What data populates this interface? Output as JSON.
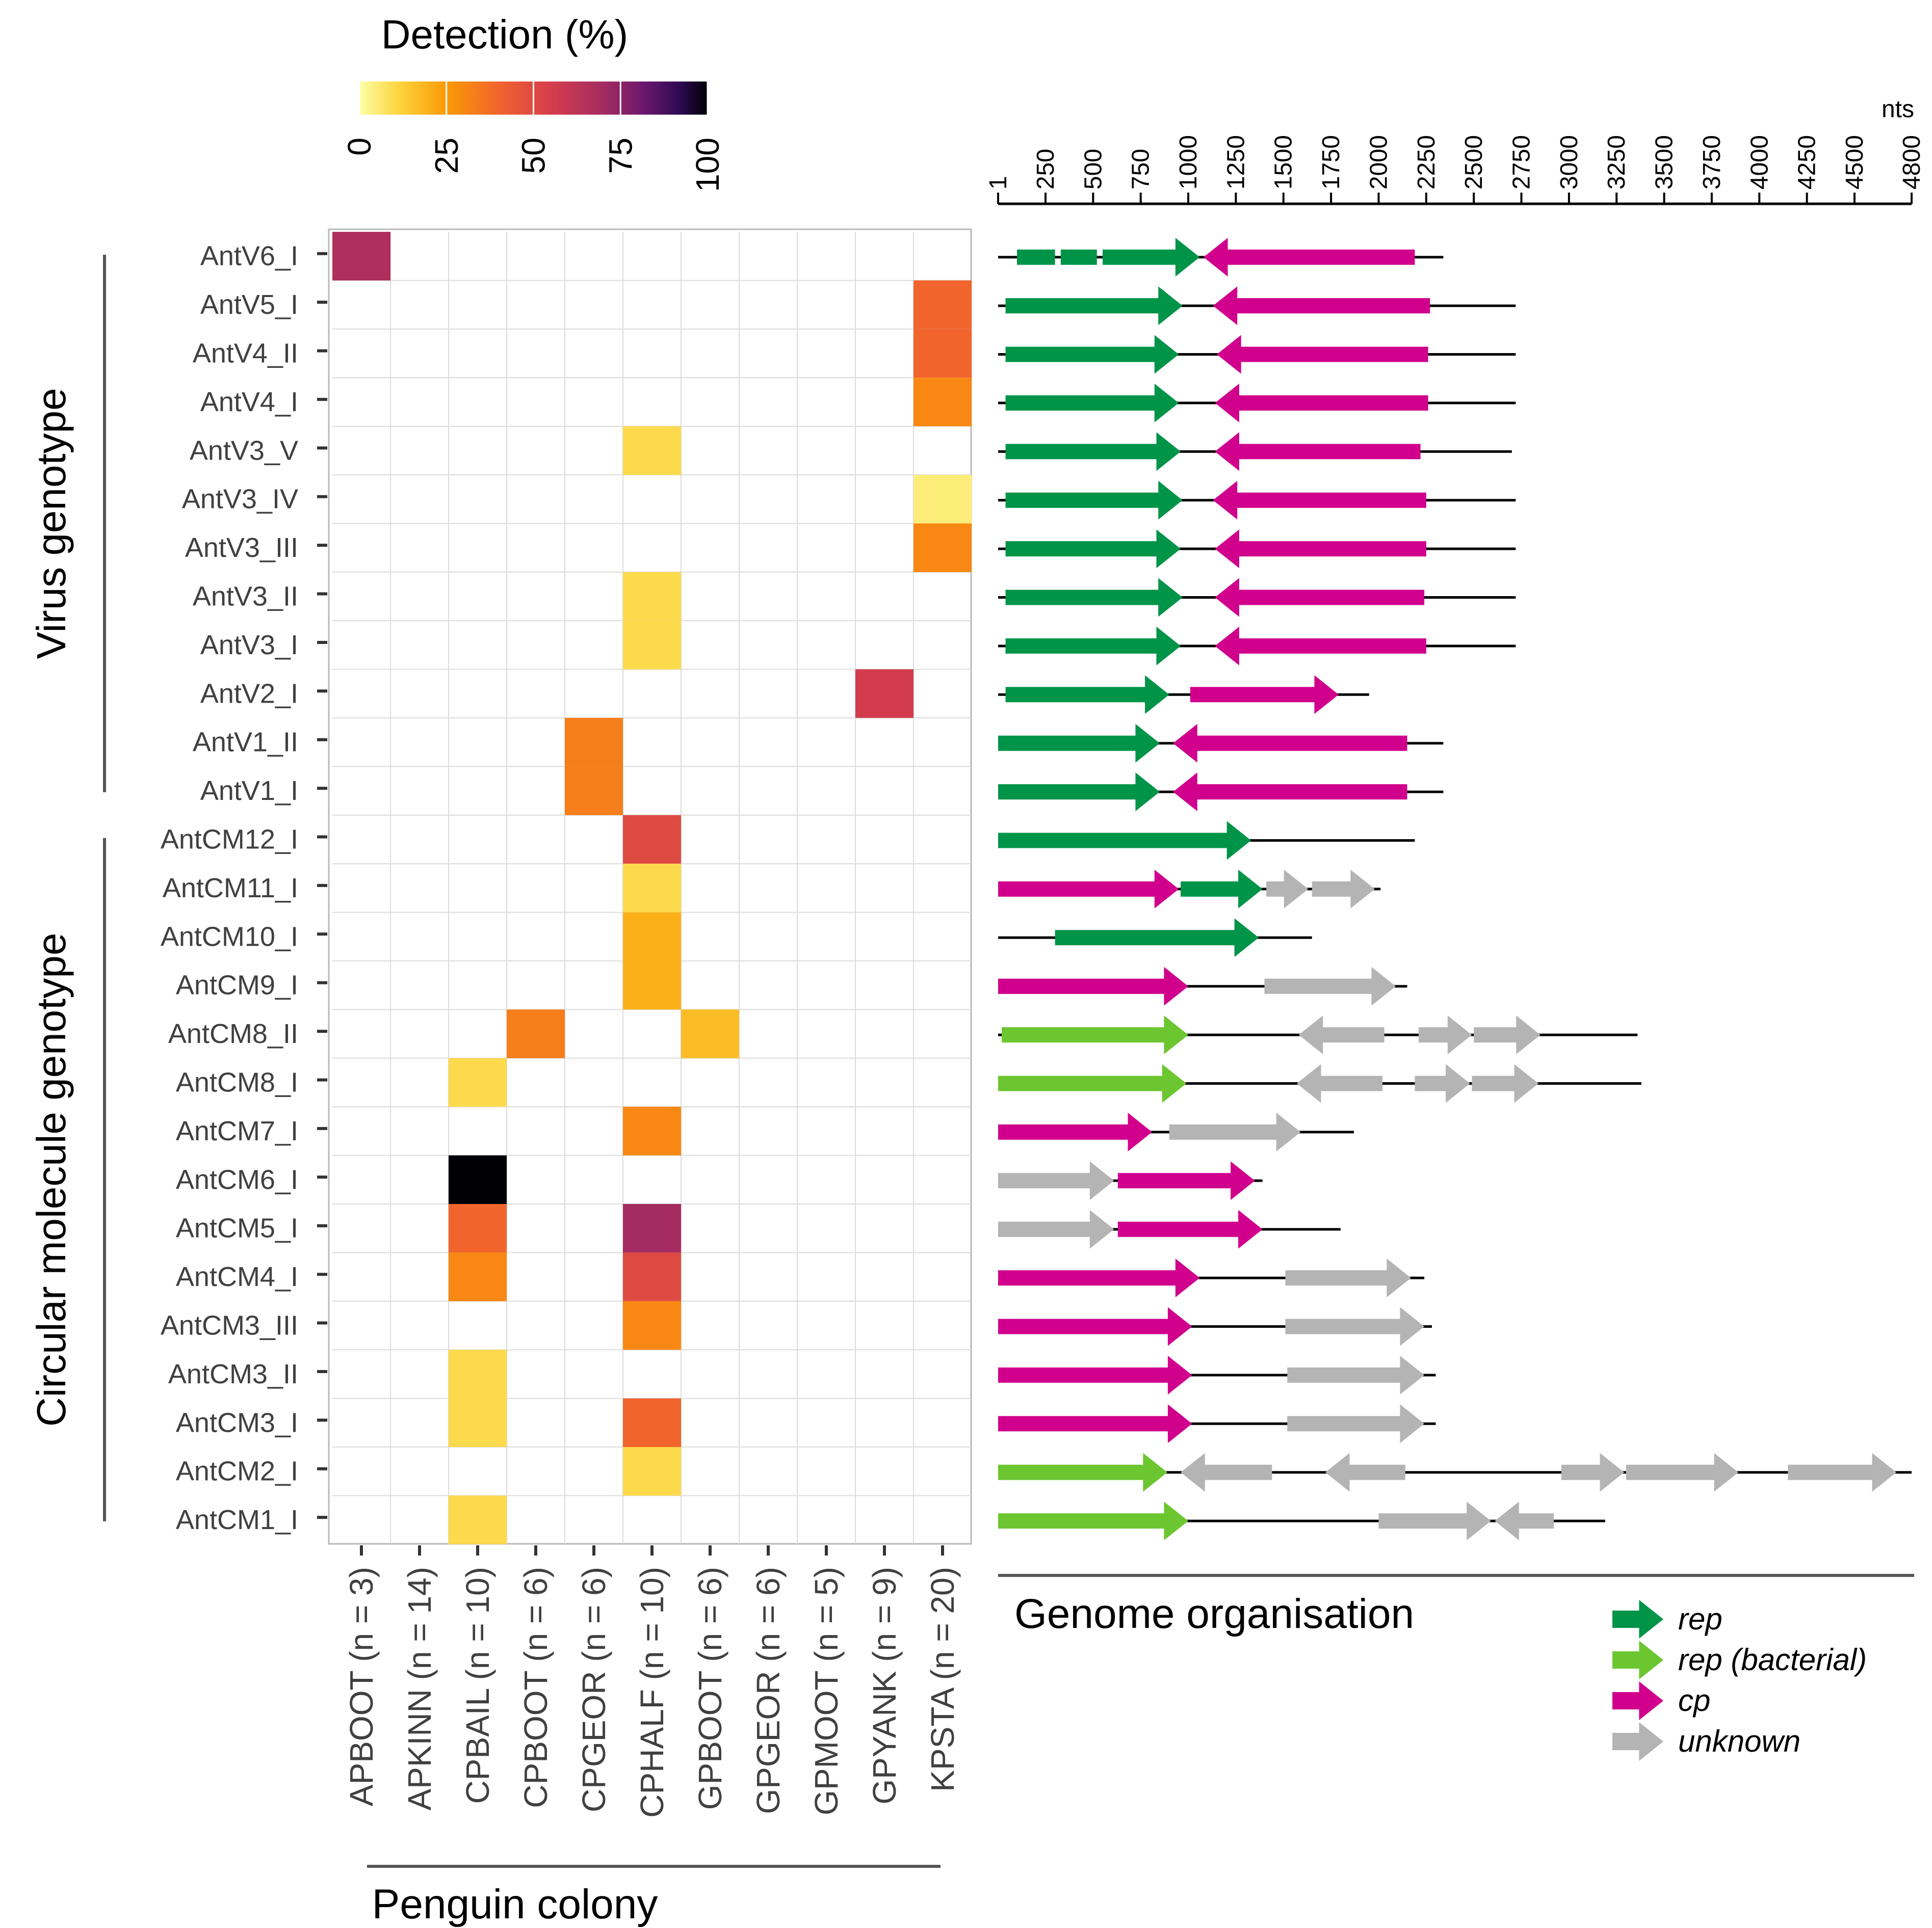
{
  "chart_data": [
    {
      "type": "heatmap",
      "title": "Detection (%)",
      "legend": {
        "title": "Detection (%)",
        "ticks": [
          "0",
          "25",
          "50",
          "75",
          "100"
        ],
        "range": [
          0,
          100
        ],
        "placement": "top-left"
      },
      "xlabel": "Penguin colony",
      "ylabel": "",
      "columns": [
        "APBOOT (n = 3)",
        "APKINN (n = 14)",
        "CPBAIL (n = 10)",
        "CPBOOT (n = 6)",
        "CPGEOR (n = 6)",
        "CPHALF (n = 10)",
        "GPBOOT (n = 6)",
        "GPGEOR (n = 6)",
        "GPMOOT (n = 5)",
        "GPYANK (n = 9)",
        "KPSTA (n = 20)"
      ],
      "rows": [
        "AntV6_I",
        "AntV5_I",
        "AntV4_II",
        "AntV4_I",
        "AntV3_V",
        "AntV3_IV",
        "AntV3_III",
        "AntV3_II",
        "AntV3_I",
        "AntV2_I",
        "AntV1_II",
        "AntV1_I",
        "AntCM12_I",
        "AntCM11_I",
        "AntCM10_I",
        "AntCM9_I",
        "AntCM8_II",
        "AntCM8_I",
        "AntCM7_I",
        "AntCM6_I",
        "AntCM5_I",
        "AntCM4_I",
        "AntCM3_III",
        "AntCM3_II",
        "AntCM3_I",
        "AntCM2_I",
        "AntCM1_I"
      ],
      "groups": [
        {
          "label": "Virus genotype",
          "first_row": 0,
          "last_row": 11
        },
        {
          "label": "Circular molecule genotype",
          "first_row": 12,
          "last_row": 26
        }
      ],
      "cells": [
        {
          "row": "AntV6_I",
          "col": "APBOOT (n = 3)",
          "value": 67
        },
        {
          "row": "AntV5_I",
          "col": "KPSTA (n = 20)",
          "value": 40
        },
        {
          "row": "AntV4_II",
          "col": "KPSTA (n = 20)",
          "value": 40
        },
        {
          "row": "AntV4_I",
          "col": "KPSTA (n = 20)",
          "value": 30
        },
        {
          "row": "AntV3_V",
          "col": "CPHALF (n = 10)",
          "value": 10
        },
        {
          "row": "AntV3_IV",
          "col": "KPSTA (n = 20)",
          "value": 5
        },
        {
          "row": "AntV3_III",
          "col": "KPSTA (n = 20)",
          "value": 30
        },
        {
          "row": "AntV3_II",
          "col": "CPHALF (n = 10)",
          "value": 10
        },
        {
          "row": "AntV3_I",
          "col": "CPHALF (n = 10)",
          "value": 10
        },
        {
          "row": "AntV2_I",
          "col": "GPYANK (n = 9)",
          "value": 56
        },
        {
          "row": "AntV1_II",
          "col": "CPGEOR (n = 6)",
          "value": 33
        },
        {
          "row": "AntV1_I",
          "col": "CPGEOR (n = 6)",
          "value": 33
        },
        {
          "row": "AntCM12_I",
          "col": "CPHALF (n = 10)",
          "value": 50
        },
        {
          "row": "AntCM11_I",
          "col": "CPHALF (n = 10)",
          "value": 10
        },
        {
          "row": "AntCM10_I",
          "col": "CPHALF (n = 10)",
          "value": 20
        },
        {
          "row": "AntCM9_I",
          "col": "CPHALF (n = 10)",
          "value": 20
        },
        {
          "row": "AntCM8_II",
          "col": "CPBOOT (n = 6)",
          "value": 33
        },
        {
          "row": "AntCM8_II",
          "col": "GPBOOT (n = 6)",
          "value": 17
        },
        {
          "row": "AntCM8_I",
          "col": "CPBAIL (n = 10)",
          "value": 10
        },
        {
          "row": "AntCM7_I",
          "col": "CPHALF (n = 10)",
          "value": 30
        },
        {
          "row": "AntCM6_I",
          "col": "CPBAIL (n = 10)",
          "value": 100
        },
        {
          "row": "AntCM5_I",
          "col": "CPBAIL (n = 10)",
          "value": 40
        },
        {
          "row": "AntCM5_I",
          "col": "CPHALF (n = 10)",
          "value": 70
        },
        {
          "row": "AntCM4_I",
          "col": "CPBAIL (n = 10)",
          "value": 30
        },
        {
          "row": "AntCM4_I",
          "col": "CPHALF (n = 10)",
          "value": 50
        },
        {
          "row": "AntCM3_III",
          "col": "CPHALF (n = 10)",
          "value": 30
        },
        {
          "row": "AntCM3_II",
          "col": "CPBAIL (n = 10)",
          "value": 10
        },
        {
          "row": "AntCM3_I",
          "col": "CPBAIL (n = 10)",
          "value": 10
        },
        {
          "row": "AntCM3_I",
          "col": "CPHALF (n = 10)",
          "value": 40
        },
        {
          "row": "AntCM2_I",
          "col": "CPHALF (n = 10)",
          "value": 10
        },
        {
          "row": "AntCM1_I",
          "col": "CPBAIL (n = 10)",
          "value": 10
        }
      ]
    },
    {
      "type": "genome-map",
      "title": "Genome organisation",
      "axis": {
        "unit": "nts",
        "range": [
          1,
          4800
        ],
        "ticks": [
          "1",
          "250",
          "500",
          "750",
          "1000",
          "1250",
          "1500",
          "1750",
          "2000",
          "2250",
          "2500",
          "2750",
          "3000",
          "3250",
          "3500",
          "3750",
          "4000",
          "4250",
          "4500",
          "4800"
        ]
      },
      "legend": [
        {
          "key": "rep",
          "label": "rep",
          "color": "#009448"
        },
        {
          "key": "repb",
          "label": "rep (bacterial)",
          "color": "#6cc630"
        },
        {
          "key": "cp",
          "label": "cp",
          "color": "#d0008c"
        },
        {
          "key": "unk",
          "label": "unknown",
          "color": "#b4b4b4"
        }
      ],
      "genomes": [
        {
          "name": "AntV6_I",
          "length": 2340,
          "genes": [
            {
              "type": "rep",
              "start": 100,
              "end": 300,
              "strand": "+",
              "head": false
            },
            {
              "type": "rep",
              "start": 330,
              "end": 520,
              "strand": "+",
              "head": false
            },
            {
              "type": "rep",
              "start": 550,
              "end": 1060,
              "strand": "+"
            },
            {
              "type": "cp",
              "start": 1080,
              "end": 2190,
              "strand": "-"
            }
          ]
        },
        {
          "name": "AntV5_I",
          "length": 2720,
          "genes": [
            {
              "type": "rep",
              "start": 40,
              "end": 970,
              "strand": "+"
            },
            {
              "type": "cp",
              "start": 1130,
              "end": 2270,
              "strand": "-"
            }
          ]
        },
        {
          "name": "AntV4_II",
          "length": 2720,
          "genes": [
            {
              "type": "rep",
              "start": 40,
              "end": 950,
              "strand": "+"
            },
            {
              "type": "cp",
              "start": 1150,
              "end": 2260,
              "strand": "-"
            }
          ]
        },
        {
          "name": "AntV4_I",
          "length": 2720,
          "genes": [
            {
              "type": "rep",
              "start": 40,
              "end": 950,
              "strand": "+"
            },
            {
              "type": "cp",
              "start": 1140,
              "end": 2260,
              "strand": "-"
            }
          ]
        },
        {
          "name": "AntV3_V",
          "length": 2700,
          "genes": [
            {
              "type": "rep",
              "start": 40,
              "end": 960,
              "strand": "+"
            },
            {
              "type": "cp",
              "start": 1140,
              "end": 2220,
              "strand": "-"
            }
          ]
        },
        {
          "name": "AntV3_IV",
          "length": 2720,
          "genes": [
            {
              "type": "rep",
              "start": 40,
              "end": 970,
              "strand": "+"
            },
            {
              "type": "cp",
              "start": 1130,
              "end": 2250,
              "strand": "-"
            }
          ]
        },
        {
          "name": "AntV3_III",
          "length": 2720,
          "genes": [
            {
              "type": "rep",
              "start": 40,
              "end": 960,
              "strand": "+"
            },
            {
              "type": "cp",
              "start": 1140,
              "end": 2250,
              "strand": "-"
            }
          ]
        },
        {
          "name": "AntV3_II",
          "length": 2720,
          "genes": [
            {
              "type": "rep",
              "start": 40,
              "end": 970,
              "strand": "+"
            },
            {
              "type": "cp",
              "start": 1140,
              "end": 2240,
              "strand": "-"
            }
          ]
        },
        {
          "name": "AntV3_I",
          "length": 2720,
          "genes": [
            {
              "type": "rep",
              "start": 40,
              "end": 960,
              "strand": "+"
            },
            {
              "type": "cp",
              "start": 1140,
              "end": 2250,
              "strand": "-"
            }
          ]
        },
        {
          "name": "AntV2_I",
          "length": 1950,
          "genes": [
            {
              "type": "rep",
              "start": 40,
              "end": 900,
              "strand": "+"
            },
            {
              "type": "cp",
              "start": 1010,
              "end": 1790,
              "strand": "+"
            }
          ]
        },
        {
          "name": "AntV1_II",
          "length": 2340,
          "genes": [
            {
              "type": "rep",
              "start": 1,
              "end": 850,
              "strand": "+"
            },
            {
              "type": "cp",
              "start": 920,
              "end": 2150,
              "strand": "-"
            }
          ]
        },
        {
          "name": "AntV1_I",
          "length": 2340,
          "genes": [
            {
              "type": "rep",
              "start": 1,
              "end": 850,
              "strand": "+"
            },
            {
              "type": "cp",
              "start": 920,
              "end": 2150,
              "strand": "-"
            }
          ]
        },
        {
          "name": "AntCM12_I",
          "length": 2190,
          "genes": [
            {
              "type": "rep",
              "start": 1,
              "end": 1330,
              "strand": "+"
            }
          ]
        },
        {
          "name": "AntCM11_I",
          "length": 2010,
          "genes": [
            {
              "type": "cp",
              "start": 1,
              "end": 950,
              "strand": "+"
            },
            {
              "type": "rep",
              "start": 960,
              "end": 1390,
              "strand": "+"
            },
            {
              "type": "unk",
              "start": 1410,
              "end": 1630,
              "strand": "+"
            },
            {
              "type": "unk",
              "start": 1650,
              "end": 1980,
              "strand": "+"
            }
          ]
        },
        {
          "name": "AntCM10_I",
          "length": 1650,
          "genes": [
            {
              "type": "rep",
              "start": 300,
              "end": 1370,
              "strand": "+"
            }
          ]
        },
        {
          "name": "AntCM9_I",
          "length": 2150,
          "genes": [
            {
              "type": "cp",
              "start": 1,
              "end": 1000,
              "strand": "+"
            },
            {
              "type": "unk",
              "start": 1400,
              "end": 2090,
              "strand": "+"
            }
          ]
        },
        {
          "name": "AntCM8_II",
          "length": 3360,
          "genes": [
            {
              "type": "repb",
              "start": 20,
              "end": 1000,
              "strand": "+"
            },
            {
              "type": "unk",
              "start": 1580,
              "end": 2030,
              "strand": "-"
            },
            {
              "type": "unk",
              "start": 2210,
              "end": 2490,
              "strand": "+"
            },
            {
              "type": "unk",
              "start": 2500,
              "end": 2850,
              "strand": "+"
            }
          ]
        },
        {
          "name": "AntCM8_I",
          "length": 3380,
          "genes": [
            {
              "type": "repb",
              "start": 1,
              "end": 990,
              "strand": "+"
            },
            {
              "type": "unk",
              "start": 1570,
              "end": 2020,
              "strand": "-"
            },
            {
              "type": "unk",
              "start": 2190,
              "end": 2480,
              "strand": "+"
            },
            {
              "type": "unk",
              "start": 2490,
              "end": 2840,
              "strand": "+"
            }
          ]
        },
        {
          "name": "AntCM7_I",
          "length": 1870,
          "genes": [
            {
              "type": "cp",
              "start": 1,
              "end": 810,
              "strand": "+"
            },
            {
              "type": "unk",
              "start": 900,
              "end": 1590,
              "strand": "+"
            }
          ]
        },
        {
          "name": "AntCM6_I",
          "length": 1390,
          "genes": [
            {
              "type": "unk",
              "start": 1,
              "end": 610,
              "strand": "+"
            },
            {
              "type": "cp",
              "start": 630,
              "end": 1350,
              "strand": "+"
            }
          ]
        },
        {
          "name": "AntCM5_I",
          "length": 1800,
          "genes": [
            {
              "type": "unk",
              "start": 1,
              "end": 610,
              "strand": "+"
            },
            {
              "type": "cp",
              "start": 630,
              "end": 1390,
              "strand": "+"
            }
          ]
        },
        {
          "name": "AntCM4_I",
          "length": 2240,
          "genes": [
            {
              "type": "cp",
              "start": 1,
              "end": 1060,
              "strand": "+"
            },
            {
              "type": "unk",
              "start": 1510,
              "end": 2170,
              "strand": "+"
            }
          ]
        },
        {
          "name": "AntCM3_III",
          "length": 2280,
          "genes": [
            {
              "type": "cp",
              "start": 1,
              "end": 1020,
              "strand": "+"
            },
            {
              "type": "unk",
              "start": 1510,
              "end": 2240,
              "strand": "+"
            }
          ]
        },
        {
          "name": "AntCM3_II",
          "length": 2300,
          "genes": [
            {
              "type": "cp",
              "start": 1,
              "end": 1020,
              "strand": "+"
            },
            {
              "type": "unk",
              "start": 1520,
              "end": 2240,
              "strand": "+"
            }
          ]
        },
        {
          "name": "AntCM3_I",
          "length": 2300,
          "genes": [
            {
              "type": "cp",
              "start": 1,
              "end": 1020,
              "strand": "+"
            },
            {
              "type": "unk",
              "start": 1520,
              "end": 2240,
              "strand": "+"
            }
          ]
        },
        {
          "name": "AntCM2_I",
          "length": 4800,
          "genes": [
            {
              "type": "repb",
              "start": 1,
              "end": 890,
              "strand": "+"
            },
            {
              "type": "unk",
              "start": 960,
              "end": 1440,
              "strand": "-"
            },
            {
              "type": "unk",
              "start": 1720,
              "end": 2140,
              "strand": "-"
            },
            {
              "type": "unk",
              "start": 2960,
              "end": 3290,
              "strand": "+"
            },
            {
              "type": "unk",
              "start": 3300,
              "end": 3890,
              "strand": "+"
            },
            {
              "type": "unk",
              "start": 4150,
              "end": 4720,
              "strand": "+"
            }
          ]
        },
        {
          "name": "AntCM1_I",
          "length": 3190,
          "genes": [
            {
              "type": "repb",
              "start": 1,
              "end": 1000,
              "strand": "+"
            },
            {
              "type": "unk",
              "start": 2000,
              "end": 2590,
              "strand": "+"
            },
            {
              "type": "unk",
              "start": 2610,
              "end": 2920,
              "strand": "-"
            }
          ]
        }
      ]
    }
  ]
}
